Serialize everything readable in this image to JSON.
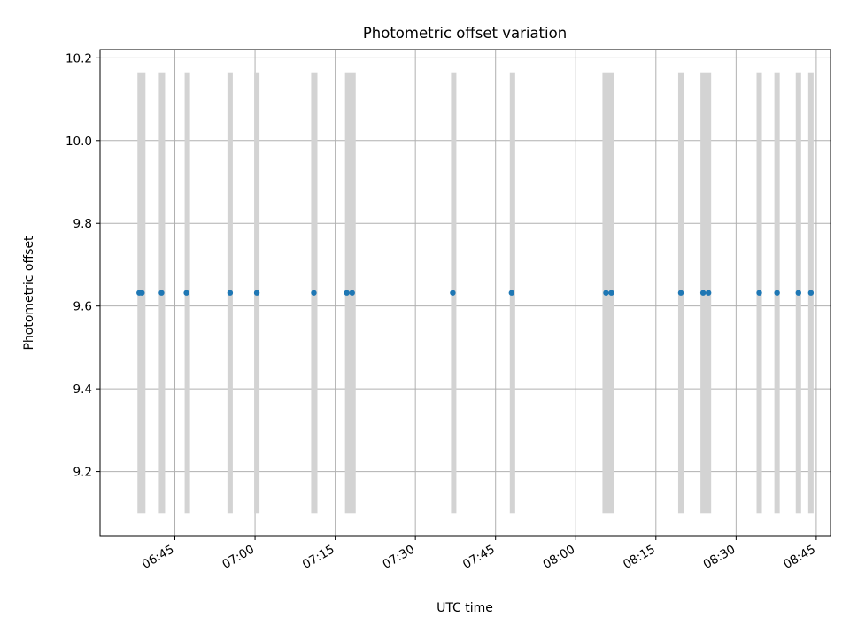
{
  "chart_data": {
    "type": "scatter",
    "title": "Photometric offset variation",
    "xlabel": "UTC time",
    "ylabel": "Photometric offset",
    "xlim": [
      "06:31:00",
      "08:47:40"
    ],
    "ylim": [
      9.045,
      10.22
    ],
    "x_ticks": [
      "06:45",
      "07:00",
      "07:15",
      "07:30",
      "07:45",
      "08:00",
      "08:15",
      "08:30",
      "08:45"
    ],
    "y_ticks": [
      9.2,
      9.4,
      9.6,
      9.8,
      10.0,
      10.2
    ],
    "y_tick_labels": [
      "9.2",
      "9.4",
      "9.6",
      "9.8",
      "10.0",
      "10.2"
    ],
    "grid": true,
    "marker_color": "#1f77b4",
    "band_color": "#d3d3d3",
    "band_range": [
      9.1,
      10.165
    ],
    "series": [
      {
        "x": [
          "06:38:20",
          "06:38:50",
          "06:42:30",
          "06:47:10",
          "06:55:20",
          "07:00:20",
          "07:11:00",
          "07:17:10",
          "07:18:10",
          "07:37:00",
          "07:48:00",
          "08:05:40",
          "08:06:40",
          "08:19:40",
          "08:23:50",
          "08:24:50",
          "08:34:20",
          "08:37:40",
          "08:41:40",
          "08:44:00"
        ],
        "y": [
          9.632,
          9.632,
          9.632,
          9.632,
          9.632,
          9.632,
          9.632,
          9.632,
          9.632,
          9.632,
          9.632,
          9.632,
          9.632,
          9.632,
          9.632,
          9.632,
          9.632,
          9.632,
          9.632,
          9.632
        ]
      }
    ],
    "bands": [
      [
        "06:38:00",
        "06:39:30"
      ],
      [
        "06:42:00",
        "06:43:10"
      ],
      [
        "06:46:50",
        "06:47:50"
      ],
      [
        "06:54:50",
        "06:55:50"
      ],
      [
        "06:59:50",
        "07:00:50"
      ],
      [
        "07:10:30",
        "07:11:40"
      ],
      [
        "07:16:50",
        "07:18:50"
      ],
      [
        "07:36:40",
        "07:37:40"
      ],
      [
        "07:47:40",
        "07:48:40"
      ],
      [
        "08:05:00",
        "08:07:10"
      ],
      [
        "08:19:10",
        "08:20:10"
      ],
      [
        "08:23:20",
        "08:25:20"
      ],
      [
        "08:33:50",
        "08:34:50"
      ],
      [
        "08:37:10",
        "08:38:10"
      ],
      [
        "08:41:10",
        "08:42:10"
      ],
      [
        "08:43:30",
        "08:44:30"
      ]
    ]
  }
}
